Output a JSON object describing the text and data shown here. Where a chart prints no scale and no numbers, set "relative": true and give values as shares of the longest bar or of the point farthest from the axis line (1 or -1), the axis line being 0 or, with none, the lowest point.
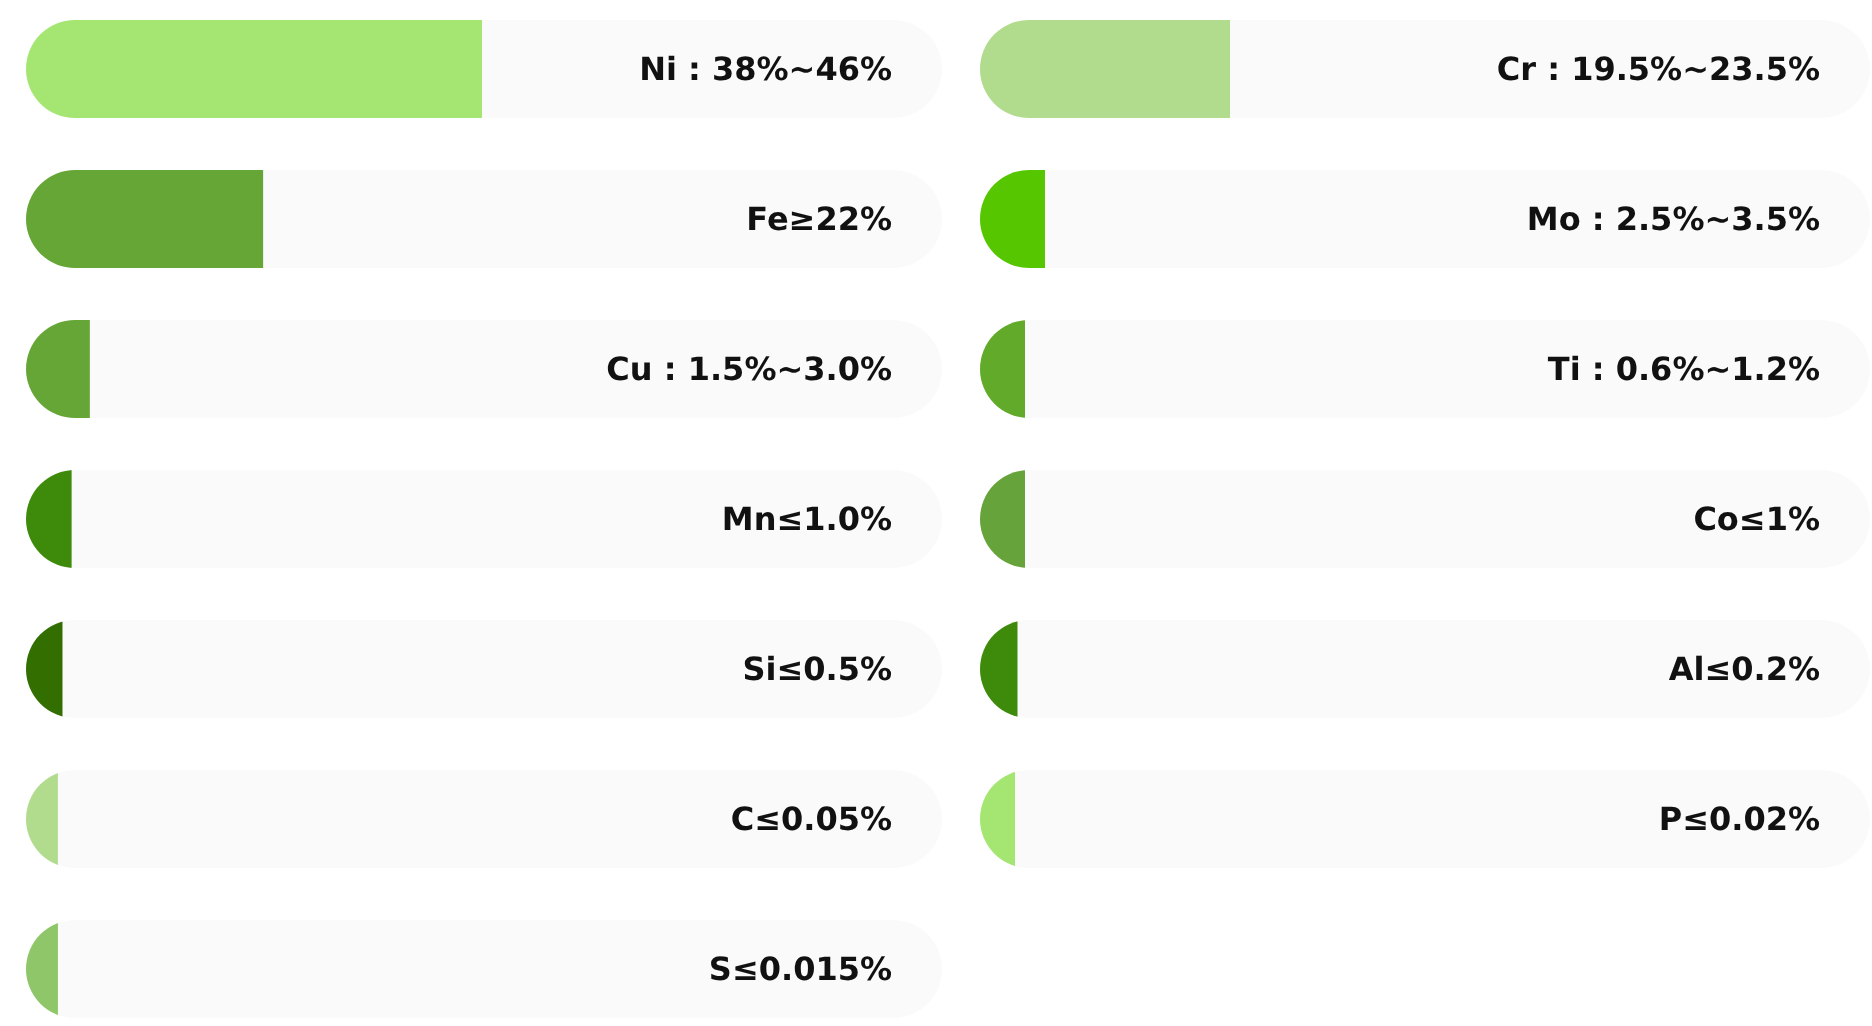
{
  "chart_data": [
    {
      "type": "bar",
      "orientation": "horizontal",
      "relative": true,
      "categories": [
        "Ni : 38%~46%",
        "Fe≥22%",
        "Cu : 1.5%~3.0%",
        "Mn≤1.0%",
        "Si≤0.5%",
        "C≤0.05%",
        "S≤0.015%"
      ],
      "values": [
        1,
        0.52,
        0.14,
        0.1,
        0.08,
        0.07,
        0.07
      ],
      "colors": [
        "#a5e673",
        "#66a636",
        "#66a636",
        "#3e8a0a",
        "#326e00",
        "#b1dc8e",
        "#8fc66a"
      ]
    },
    {
      "type": "bar",
      "orientation": "horizontal",
      "relative": true,
      "categories": [
        "Cr : 19.5%~23.5%",
        "Mo : 2.5%~3.5%",
        "Ti : 0.6%~1.2%",
        "Co≤1%",
        "Al≤0.2%",
        "P≤0.02%"
      ],
      "values": [
        1,
        0.26,
        0.18,
        0.18,
        0.15,
        0.14
      ],
      "colors": [
        "#b1dc8e",
        "#56c600",
        "#62aa2a",
        "#66a33b",
        "#3e8a0a",
        "#a5e673"
      ]
    }
  ]
}
